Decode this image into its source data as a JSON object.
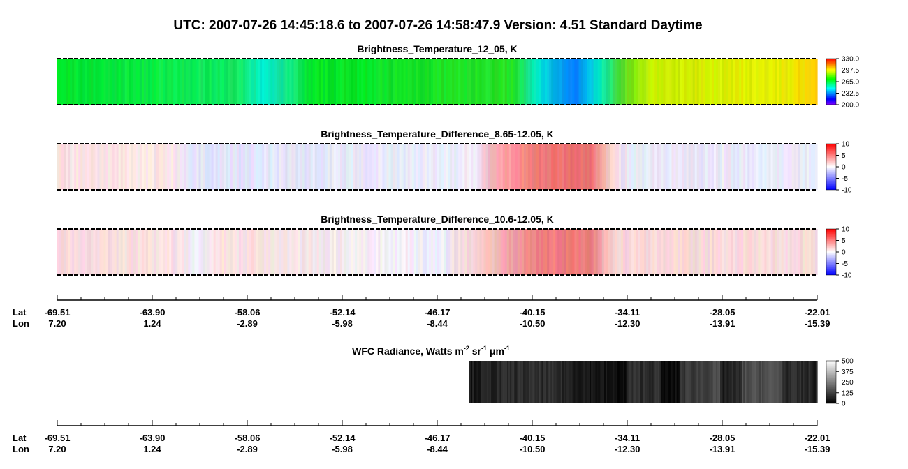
{
  "title": "UTC:  2007-07-26   14:45:18.6  to  2007-07-26   14:58:47.9    Version: 4.51  Standard Daytime",
  "panels": [
    {
      "title": "Brightness_Temperature_12_05, K",
      "colorbar": [
        "330.0",
        "297.5",
        "265.0",
        "232.5",
        "200.0"
      ]
    },
    {
      "title": "Brightness_Temperature_Difference_8.65-12.05, K",
      "colorbar": [
        "10",
        "5",
        "0",
        "-5",
        "-10"
      ]
    },
    {
      "title": "Brightness_Temperature_Difference_10.6-12.05, K",
      "colorbar": [
        "10",
        "5",
        "0",
        "-5",
        "-10"
      ]
    }
  ],
  "axis": {
    "lat_label": "Lat",
    "lon_label": "Lon",
    "lat": [
      "-69.51",
      "-63.90",
      "-58.06",
      "-52.14",
      "-46.17",
      "-40.15",
      "-34.11",
      "-28.05",
      "-22.01"
    ],
    "lon": [
      "7.20",
      "1.24",
      "-2.89",
      "-5.98",
      "-8.44",
      "-10.50",
      "-12.30",
      "-13.91",
      "-15.39"
    ]
  },
  "wfc": {
    "title_parts": [
      "WFC Radiance, Watts m",
      "-2",
      " sr",
      "-1",
      " μm",
      "-1"
    ],
    "colorbar": [
      "500",
      "375",
      "250",
      "125",
      "0"
    ]
  }
}
